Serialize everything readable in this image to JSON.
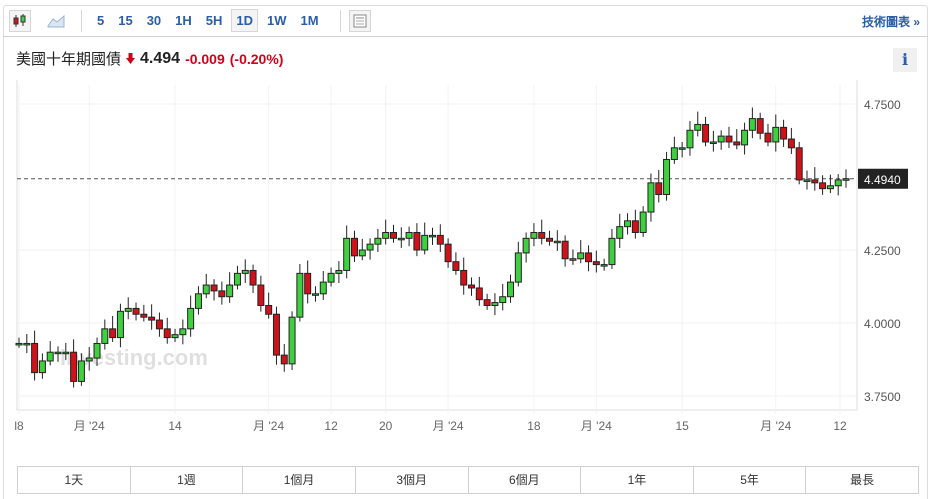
{
  "toolbar": {
    "timeframes": [
      "5",
      "15",
      "30",
      "1H",
      "5H",
      "1D",
      "1W",
      "1M"
    ],
    "active": "1D",
    "tech_chart_label": "技術圖表 »"
  },
  "instrument": {
    "name": "美國十年期國債",
    "price": "4.494",
    "change": "-0.009",
    "change_pct": "(-0.20%)",
    "info_label": "i"
  },
  "colors": {
    "up": "#3fcf3f",
    "down": "#d0121b",
    "accent": "#2a5ea8"
  },
  "watermark": "investing.com",
  "chart_data": {
    "type": "candlestick",
    "y_ticks": [
      "4.7500",
      "4.2500",
      "4.0000",
      "3.7500"
    ],
    "y_tick_values": [
      4.75,
      4.25,
      4.0,
      3.75
    ],
    "ylim": [
      3.7,
      4.82
    ],
    "current_label": "4.4940",
    "current_value": 4.494,
    "x_ticks": [
      "l8",
      "月 '24",
      "14",
      "月 '24",
      "12",
      "20",
      "月 '24",
      "18",
      "月 '24",
      "15",
      "月 '24",
      "12"
    ],
    "x_tick_index": [
      0,
      9,
      20,
      32,
      40,
      47,
      55,
      66,
      74,
      85,
      97,
      107
    ],
    "start_open": 3.93,
    "closes": [
      3.93,
      3.93,
      3.83,
      3.87,
      3.9,
      3.9,
      3.9,
      3.8,
      3.87,
      3.88,
      3.93,
      3.98,
      3.95,
      4.04,
      4.05,
      4.03,
      4.02,
      4.01,
      3.98,
      3.95,
      3.96,
      3.98,
      4.05,
      4.1,
      4.13,
      4.11,
      4.09,
      4.13,
      4.17,
      4.18,
      4.13,
      4.06,
      4.03,
      3.89,
      3.86,
      4.02,
      4.17,
      4.1,
      4.1,
      4.14,
      4.17,
      4.18,
      4.29,
      4.23,
      4.25,
      4.27,
      4.29,
      4.31,
      4.29,
      4.29,
      4.31,
      4.25,
      4.3,
      4.3,
      4.27,
      4.21,
      4.18,
      4.13,
      4.12,
      4.08,
      4.06,
      4.07,
      4.09,
      4.14,
      4.24,
      4.29,
      4.31,
      4.29,
      4.28,
      4.28,
      4.22,
      4.22,
      4.24,
      4.21,
      4.2,
      4.2,
      4.29,
      4.33,
      4.35,
      4.31,
      4.38,
      4.48,
      4.44,
      4.56,
      4.6,
      4.6,
      4.66,
      4.68,
      4.62,
      4.62,
      4.64,
      4.62,
      4.61,
      4.66,
      4.7,
      4.65,
      4.62,
      4.67,
      4.63,
      4.6,
      4.49,
      4.49,
      4.48,
      4.46,
      4.47,
      4.49,
      4.494
    ]
  },
  "ranges": [
    "1天",
    "1週",
    "1個月",
    "3個月",
    "6個月",
    "1年",
    "5年",
    "最長"
  ]
}
